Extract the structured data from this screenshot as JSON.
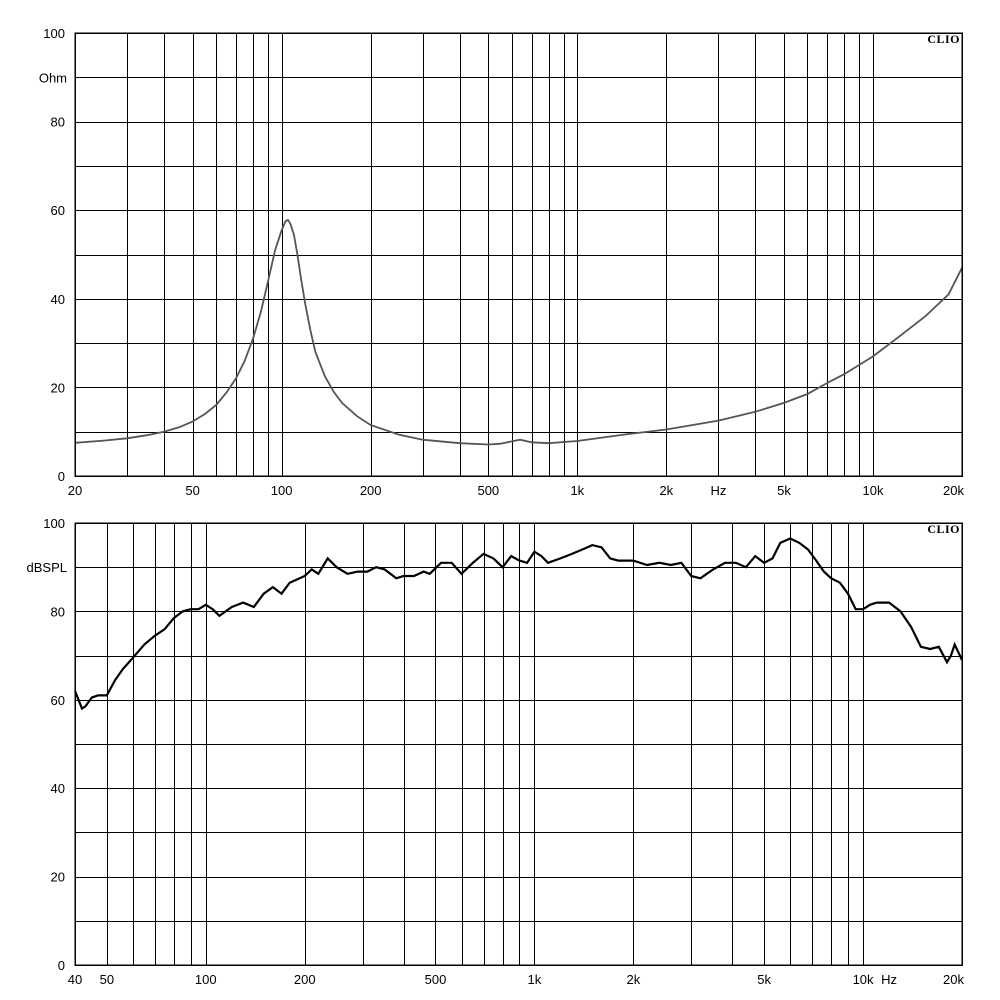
{
  "chart_data": [
    {
      "type": "line",
      "brand": "CLIO",
      "xscale": "log",
      "xlim": [
        20,
        20000
      ],
      "ylim": [
        0,
        100
      ],
      "grid": true,
      "y_unit": "Ohm",
      "x_unit": "Hz",
      "ytick_values": [
        0,
        20,
        40,
        60,
        80,
        100
      ],
      "ytick_labels": [
        "0",
        "20",
        "40",
        "60",
        "80",
        "100"
      ],
      "ygrid": [
        0,
        10,
        20,
        30,
        40,
        50,
        60,
        70,
        80,
        90,
        100
      ],
      "xtick_values": [
        20,
        50,
        100,
        200,
        500,
        1000,
        2000,
        5000,
        10000,
        20000
      ],
      "xtick_labels": [
        "20",
        "50",
        "100",
        "200",
        "500",
        "1k",
        "2k",
        "5k",
        "10k",
        "20k"
      ],
      "series": [
        {
          "x": [
            20,
            25,
            30,
            35,
            40,
            45,
            50,
            55,
            60,
            65,
            70,
            75,
            80,
            85,
            90,
            95,
            100,
            103,
            105,
            107,
            110,
            113,
            116,
            120,
            125,
            130,
            140,
            150,
            160,
            180,
            200,
            250,
            300,
            400,
            500,
            550,
            600,
            640,
            700,
            800,
            1000,
            1500,
            2000,
            3000,
            4000,
            5000,
            6000,
            7000,
            8000,
            10000,
            12000,
            15000,
            18000,
            20000
          ],
          "y": [
            7.5,
            8.0,
            8.5,
            9.2,
            10.0,
            11.0,
            12.3,
            14.0,
            16.0,
            18.8,
            22.0,
            26.0,
            31.0,
            37.0,
            44.0,
            51.0,
            55.5,
            57.5,
            57.8,
            57.0,
            54.5,
            50.0,
            45.0,
            39.0,
            33.0,
            28.0,
            22.5,
            19.0,
            16.5,
            13.5,
            11.5,
            9.3,
            8.2,
            7.4,
            7.1,
            7.3,
            7.8,
            8.2,
            7.6,
            7.4,
            7.9,
            9.5,
            10.5,
            12.5,
            14.5,
            16.5,
            18.5,
            21.0,
            23.0,
            27.0,
            31.0,
            36.0,
            41.0,
            47.0
          ]
        }
      ]
    },
    {
      "type": "line",
      "brand": "CLIO",
      "xscale": "log",
      "xlim": [
        40,
        20000
      ],
      "ylim": [
        0,
        100
      ],
      "grid": true,
      "y_unit": "dBSPL",
      "x_unit": "Hz",
      "ytick_values": [
        0,
        20,
        40,
        60,
        80,
        100
      ],
      "ytick_labels": [
        "0",
        "20",
        "40",
        "60",
        "80",
        "100"
      ],
      "ygrid": [
        0,
        10,
        20,
        30,
        40,
        50,
        60,
        70,
        80,
        90,
        100
      ],
      "xtick_values": [
        40,
        50,
        100,
        200,
        500,
        1000,
        2000,
        5000,
        10000,
        20000
      ],
      "xtick_labels": [
        "40",
        "50",
        "100",
        "200",
        "500",
        "1k",
        "2k",
        "5k",
        "10k",
        "20k"
      ],
      "series": [
        {
          "x": [
            40,
            41,
            42,
            43,
            45,
            47,
            50,
            53,
            56,
            60,
            65,
            70,
            75,
            80,
            85,
            90,
            95,
            100,
            105,
            110,
            120,
            130,
            140,
            150,
            160,
            170,
            180,
            200,
            210,
            220,
            235,
            250,
            270,
            290,
            310,
            330,
            350,
            380,
            400,
            430,
            460,
            480,
            520,
            560,
            600,
            650,
            700,
            750,
            800,
            850,
            900,
            950,
            1000,
            1050,
            1100,
            1200,
            1300,
            1400,
            1500,
            1600,
            1700,
            1800,
            2000,
            2200,
            2400,
            2600,
            2800,
            3000,
            3200,
            3500,
            3800,
            4100,
            4400,
            4700,
            5000,
            5300,
            5600,
            6000,
            6400,
            6800,
            7200,
            7600,
            8000,
            8500,
            9000,
            9500,
            10000,
            10500,
            11000,
            12000,
            13000,
            14000,
            15000,
            16000,
            17000,
            18000,
            18500,
            19000,
            20000
          ],
          "y": [
            62,
            60,
            58,
            58.5,
            60.5,
            61.0,
            61.0,
            64.5,
            67.0,
            69.5,
            72.5,
            74.5,
            76.0,
            78.5,
            80.0,
            80.5,
            80.5,
            81.5,
            80.5,
            79.0,
            81.0,
            82.0,
            81.0,
            84.0,
            85.5,
            84.0,
            86.5,
            88.0,
            89.5,
            88.5,
            92.0,
            90.0,
            88.5,
            89.0,
            89.0,
            90.0,
            89.5,
            87.5,
            88.0,
            88.0,
            89.0,
            88.5,
            91.0,
            91.0,
            88.5,
            91.0,
            93.0,
            92.0,
            90.0,
            92.5,
            91.5,
            91.0,
            93.5,
            92.5,
            91.0,
            92.0,
            93.0,
            94.0,
            95.0,
            94.5,
            92.0,
            91.5,
            91.5,
            90.5,
            91.0,
            90.5,
            91.0,
            88.0,
            87.5,
            89.5,
            91.0,
            91.0,
            90.0,
            92.5,
            91.0,
            92.0,
            95.5,
            96.5,
            95.5,
            94.0,
            91.5,
            89.0,
            87.5,
            86.5,
            84.0,
            80.5,
            80.5,
            81.5,
            82.0,
            82.0,
            80.0,
            76.5,
            72.0,
            71.5,
            72.0,
            68.5,
            70.0,
            72.5,
            69.0
          ]
        }
      ]
    }
  ]
}
